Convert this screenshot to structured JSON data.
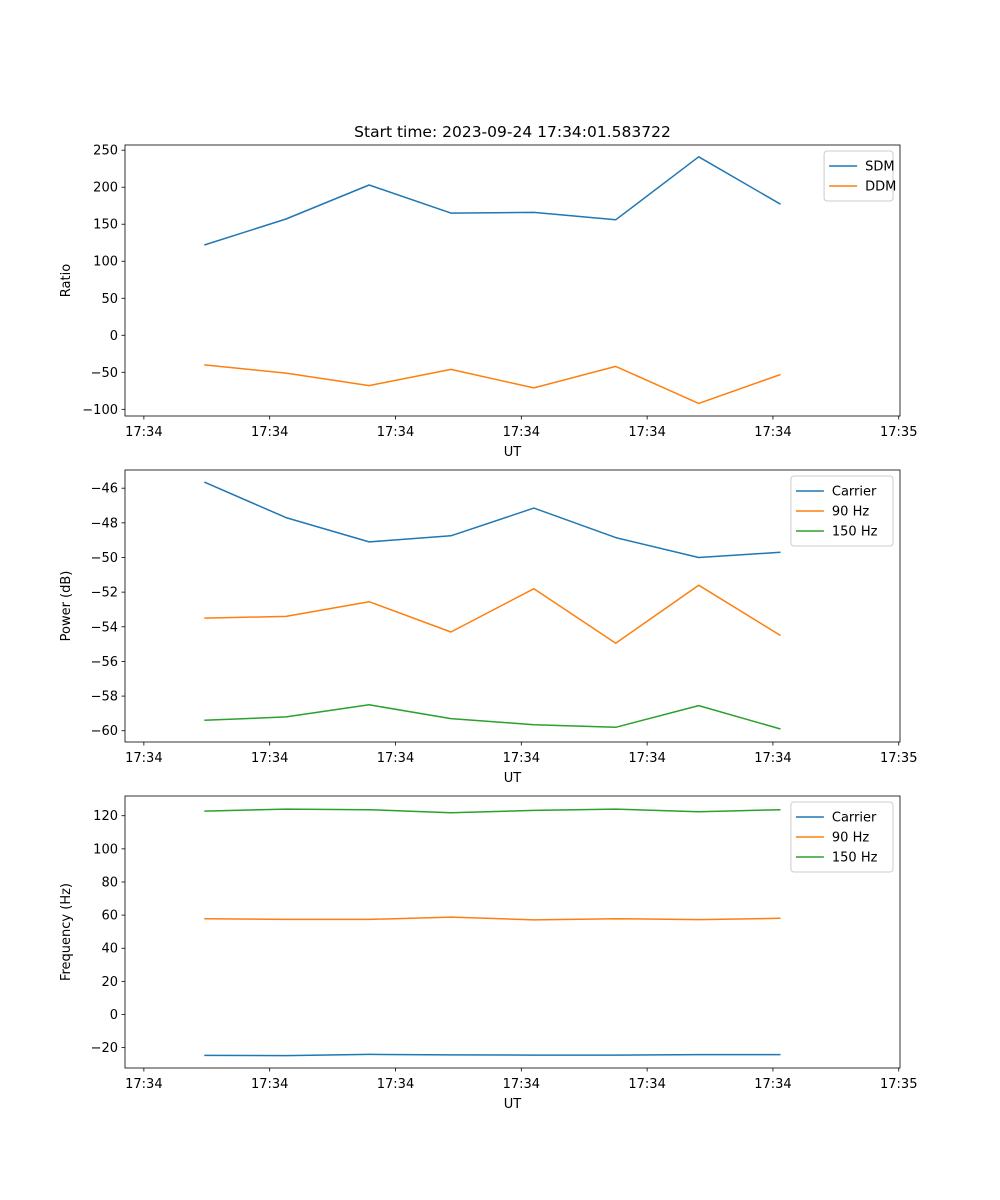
{
  "chart_data": [
    {
      "type": "line",
      "title": "Start time: 2023-09-24 17:34:01.583722",
      "xlabel": "UT",
      "ylabel": "Ratio",
      "x_unit": "seconds after 17:34:00",
      "x": [
        4.8,
        11.3,
        17.9,
        24.4,
        31.0,
        37.5,
        44.1,
        50.6
      ],
      "xlim": [
        -1.5,
        60.1
      ],
      "xticks": [
        0,
        10,
        20,
        30,
        40,
        50,
        60
      ],
      "xtick_labels": [
        "17:34",
        "17:34",
        "17:34",
        "17:34",
        "17:34",
        "17:34",
        "17:35"
      ],
      "ylim": [
        -109,
        257
      ],
      "yticks": [
        -100,
        -50,
        0,
        50,
        100,
        150,
        200,
        250
      ],
      "legend": "top-right",
      "series": [
        {
          "name": "SDM",
          "color": "#1f77b4",
          "values": [
            122,
            157,
            203,
            165,
            166,
            156,
            241,
            177
          ]
        },
        {
          "name": "DDM",
          "color": "#ff7f0e",
          "values": [
            -40,
            -51,
            -68,
            -46,
            -71,
            -42,
            -92,
            -53
          ]
        }
      ]
    },
    {
      "type": "line",
      "title": "",
      "xlabel": "UT",
      "ylabel": "Power (dB)",
      "x_unit": "seconds after 17:34:00",
      "x": [
        4.8,
        11.3,
        17.9,
        24.4,
        31.0,
        37.5,
        44.1,
        50.6
      ],
      "xlim": [
        -1.5,
        60.1
      ],
      "xticks": [
        0,
        10,
        20,
        30,
        40,
        50,
        60
      ],
      "xtick_labels": [
        "17:34",
        "17:34",
        "17:34",
        "17:34",
        "17:34",
        "17:34",
        "17:35"
      ],
      "ylim": [
        -60.65,
        -44.95
      ],
      "yticks": [
        -60,
        -58,
        -56,
        -54,
        -52,
        -50,
        -48,
        -46
      ],
      "legend": "top-right",
      "series": [
        {
          "name": "Carrier",
          "color": "#1f77b4",
          "values": [
            -45.65,
            -47.7,
            -49.1,
            -48.75,
            -47.15,
            -48.85,
            -50.0,
            -49.7
          ]
        },
        {
          "name": "90 Hz",
          "color": "#ff7f0e",
          "values": [
            -53.5,
            -53.4,
            -52.55,
            -54.3,
            -51.8,
            -54.95,
            -51.6,
            -54.5
          ]
        },
        {
          "name": "150 Hz",
          "color": "#2ca02c",
          "values": [
            -59.4,
            -59.2,
            -58.5,
            -59.3,
            -59.65,
            -59.8,
            -58.55,
            -59.9
          ]
        }
      ]
    },
    {
      "type": "line",
      "title": "",
      "xlabel": "UT",
      "ylabel": "Frequency (Hz)",
      "x_unit": "seconds after 17:34:00",
      "x": [
        4.8,
        11.3,
        17.9,
        24.4,
        31.0,
        37.5,
        44.1,
        50.6
      ],
      "xlim": [
        -1.5,
        60.1
      ],
      "xticks": [
        0,
        10,
        20,
        30,
        40,
        50,
        60
      ],
      "xtick_labels": [
        "17:34",
        "17:34",
        "17:34",
        "17:34",
        "17:34",
        "17:34",
        "17:35"
      ],
      "ylim": [
        -32.3,
        131.9
      ],
      "yticks": [
        -20,
        0,
        20,
        40,
        60,
        80,
        100,
        120
      ],
      "legend": "top-right",
      "series": [
        {
          "name": "Carrier",
          "color": "#1f77b4",
          "values": [
            -24.7,
            -24.8,
            -24.1,
            -24.4,
            -24.5,
            -24.5,
            -24.2,
            -24.2
          ]
        },
        {
          "name": "90 Hz",
          "color": "#ff7f0e",
          "values": [
            57.8,
            57.4,
            57.4,
            58.8,
            57.1,
            57.8,
            57.3,
            58.1
          ]
        },
        {
          "name": "150 Hz",
          "color": "#2ca02c",
          "values": [
            122.8,
            124.0,
            123.6,
            121.8,
            123.2,
            124.0,
            122.4,
            123.6
          ]
        }
      ]
    }
  ]
}
